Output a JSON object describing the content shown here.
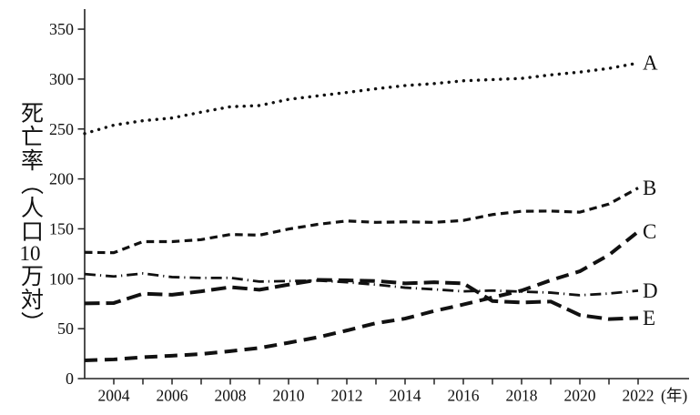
{
  "chart_data": {
    "type": "line",
    "title": "",
    "ylabel": "死亡率（人口10万対）",
    "ylabel_parts": {
      "pre": "死亡率（人口",
      "tcy": "10",
      "post": "万対）"
    },
    "x_unit_label": "(年)",
    "x": [
      2003,
      2004,
      2005,
      2006,
      2007,
      2008,
      2009,
      2010,
      2011,
      2012,
      2013,
      2014,
      2015,
      2016,
      2017,
      2018,
      2019,
      2020,
      2021,
      2022
    ],
    "x_tick_years": [
      2004,
      2005,
      2006,
      2007,
      2008,
      2009,
      2010,
      2011,
      2012,
      2013,
      2014,
      2015,
      2016,
      2017,
      2018,
      2019,
      2020,
      2021,
      2022
    ],
    "x_tick_labels": [
      "2004",
      "2006",
      "2008",
      "2010",
      "2012",
      "2014",
      "2016",
      "2018",
      "2020",
      "2022"
    ],
    "yticks": [
      0,
      50,
      100,
      150,
      200,
      250,
      300,
      350
    ],
    "ylim": [
      0,
      370
    ],
    "grid": false,
    "legend_position": "line-end-labels",
    "line_color": "#111111",
    "axis_color": "#222222",
    "series": [
      {
        "name": "A",
        "style": "dotted",
        "values": [
          245.4,
          253.9,
          258.3,
          261.0,
          266.9,
          272.3,
          273.5,
          279.7,
          283.2,
          286.6,
          290.3,
          293.5,
          295.5,
          298.3,
          299.5,
          300.7,
          304.2,
          307.0,
          310.7,
          316.1
        ]
      },
      {
        "name": "B",
        "style": "dashed-short",
        "values": [
          126.5,
          126.1,
          137.2,
          137.2,
          139.2,
          144.4,
          143.7,
          149.8,
          154.5,
          157.9,
          156.5,
          157.0,
          156.5,
          158.4,
          164.3,
          167.6,
          167.8,
          166.7,
          174.9,
          190.9
        ]
      },
      {
        "name": "C",
        "style": "dashed-long",
        "values": [
          18.2,
          19.2,
          21.4,
          22.9,
          24.6,
          27.5,
          30.7,
          35.9,
          41.4,
          48.2,
          55.5,
          60.1,
          67.7,
          74.2,
          81.3,
          88.2,
          98.5,
          107.5,
          123.8,
          147.1
        ]
      },
      {
        "name": "D",
        "style": "dash-dot",
        "values": [
          104.7,
          102.3,
          105.3,
          101.7,
          100.8,
          100.9,
          97.2,
          97.7,
          98.2,
          96.5,
          94.1,
          91.1,
          89.4,
          87.4,
          88.2,
          87.1,
          86.1,
          83.5,
          85.2,
          88.1
        ]
      },
      {
        "name": "E",
        "style": "dashed-longer",
        "values": [
          75.3,
          75.7,
          85.0,
          84.0,
          87.4,
          91.6,
          89.0,
          94.1,
          98.9,
          98.4,
          97.8,
          95.4,
          96.5,
          95.4,
          77.7,
          76.2,
          77.2,
          63.6,
          59.6,
          60.7
        ]
      }
    ]
  }
}
